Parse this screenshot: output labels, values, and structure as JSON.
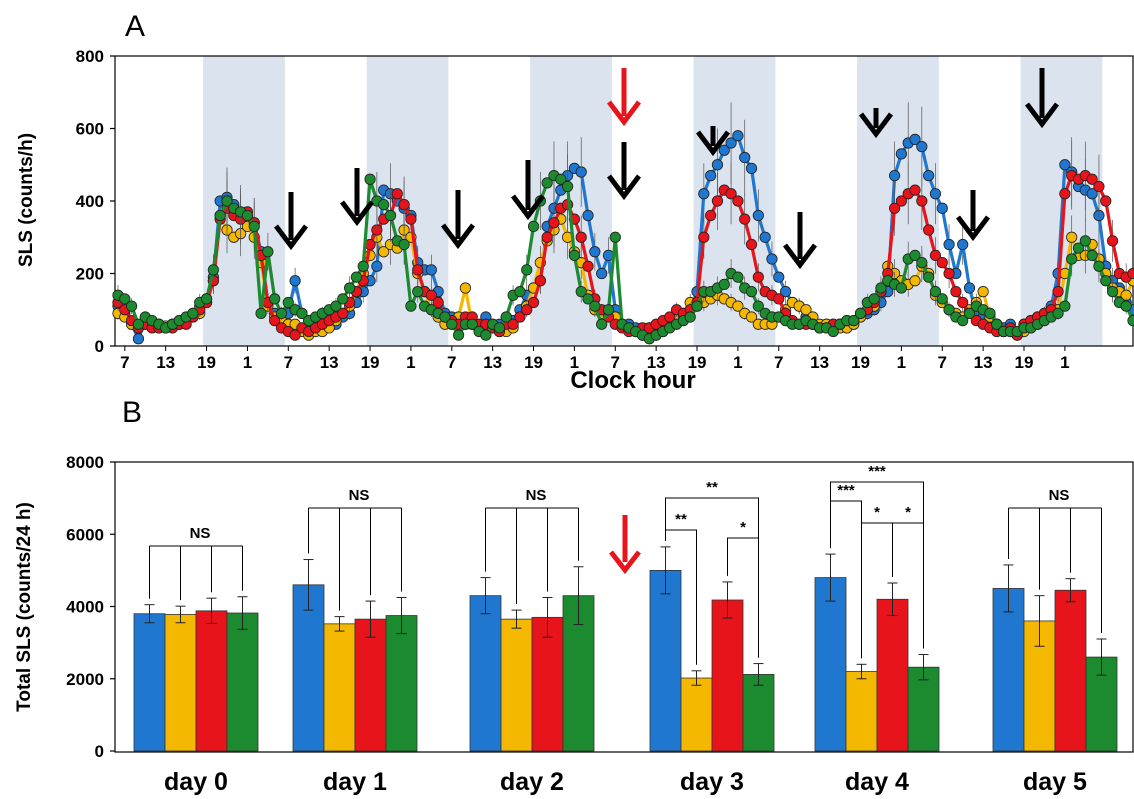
{
  "chart_data": [
    {
      "panel": "A",
      "type": "line",
      "xlabel": "Clock hour",
      "ylabel": "SLS (counts/h)",
      "ylim": [
        0,
        800
      ],
      "y_ticks": [
        "0",
        "200",
        "400",
        "600",
        "800"
      ],
      "x_tick_labels": [
        "7",
        "13",
        "19",
        "1",
        "7",
        "13",
        "19",
        "1",
        "7",
        "13",
        "19",
        "1",
        "7",
        "13",
        "19",
        "1",
        "7",
        "13",
        "19",
        "1",
        "7",
        "13",
        "19",
        "1"
      ],
      "dark_phase_shading": true,
      "colors": [
        "#1f77d0",
        "#f5b800",
        "#e8141b",
        "#1c8a2e"
      ],
      "series": [
        {
          "color": "#1f77d0",
          "values": [
            110,
            90,
            60,
            20,
            70,
            60,
            60,
            55,
            60,
            70,
            70,
            90,
            110,
            130,
            190,
            400,
            410,
            390,
            360,
            350,
            340,
            260,
            120,
            90,
            80,
            90,
            180,
            90,
            70,
            60,
            50,
            60,
            60,
            80,
            90,
            120,
            150,
            180,
            220,
            430,
            420,
            400,
            380,
            360,
            230,
            210,
            210,
            150,
            90,
            80,
            60,
            60,
            60,
            50,
            80,
            60,
            60,
            80,
            70,
            100,
            140,
            160,
            180,
            330,
            380,
            430,
            470,
            490,
            480,
            360,
            260,
            200,
            250,
            100,
            60,
            60,
            50,
            40,
            50,
            40,
            60,
            60,
            80,
            90,
            100,
            150,
            420,
            470,
            500,
            540,
            560,
            580,
            520,
            490,
            360,
            300,
            240,
            190,
            150,
            120,
            110,
            80,
            60,
            50,
            60,
            60,
            60,
            50,
            60,
            80,
            90,
            100,
            120,
            150,
            470,
            530,
            560,
            570,
            550,
            470,
            420,
            380,
            280,
            200,
            280,
            160,
            90,
            80,
            60,
            60,
            50,
            60,
            40,
            60,
            70,
            80,
            90,
            110,
            200,
            500,
            480,
            440,
            430,
            420,
            360,
            220,
            180,
            160,
            120,
            100
          ]
        },
        {
          "color": "#f5b800",
          "values": [
            90,
            80,
            60,
            50,
            60,
            55,
            50,
            55,
            60,
            60,
            70,
            80,
            90,
            120,
            180,
            360,
            320,
            300,
            310,
            330,
            300,
            230,
            110,
            80,
            70,
            60,
            60,
            40,
            30,
            40,
            40,
            50,
            70,
            90,
            110,
            150,
            200,
            250,
            300,
            260,
            280,
            270,
            320,
            300,
            200,
            150,
            100,
            80,
            60,
            60,
            80,
            160,
            60,
            50,
            50,
            50,
            40,
            40,
            50,
            80,
            110,
            160,
            230,
            290,
            320,
            350,
            300,
            260,
            230,
            140,
            100,
            90,
            90,
            80,
            60,
            50,
            40,
            30,
            40,
            30,
            40,
            60,
            80,
            80,
            120,
            110,
            120,
            130,
            140,
            130,
            120,
            110,
            90,
            80,
            60,
            60,
            60,
            80,
            100,
            120,
            110,
            100,
            80,
            60,
            60,
            50,
            50,
            50,
            60,
            80,
            100,
            110,
            150,
            220,
            200,
            180,
            170,
            180,
            220,
            200,
            140,
            120,
            100,
            90,
            80,
            100,
            120,
            150,
            80,
            60,
            40,
            40,
            30,
            40,
            50,
            60,
            80,
            90,
            100,
            200,
            300,
            250,
            250,
            280,
            240,
            200,
            160,
            150,
            140,
            180
          ]
        },
        {
          "color": "#e8141b",
          "values": [
            120,
            100,
            70,
            50,
            60,
            50,
            50,
            50,
            50,
            60,
            60,
            80,
            100,
            120,
            180,
            350,
            380,
            360,
            350,
            370,
            340,
            250,
            120,
            70,
            50,
            40,
            30,
            50,
            40,
            50,
            60,
            70,
            80,
            90,
            120,
            150,
            180,
            280,
            320,
            350,
            360,
            420,
            390,
            350,
            210,
            150,
            140,
            120,
            80,
            70,
            60,
            80,
            80,
            60,
            60,
            50,
            40,
            60,
            60,
            80,
            100,
            120,
            180,
            300,
            340,
            380,
            390,
            350,
            300,
            220,
            130,
            100,
            80,
            60,
            50,
            40,
            40,
            50,
            50,
            60,
            70,
            80,
            100,
            90,
            100,
            120,
            300,
            360,
            400,
            430,
            420,
            400,
            350,
            280,
            190,
            150,
            140,
            130,
            90,
            70,
            60,
            60,
            60,
            50,
            50,
            60,
            60,
            70,
            70,
            90,
            100,
            120,
            150,
            200,
            380,
            400,
            420,
            430,
            400,
            320,
            250,
            230,
            200,
            150,
            120,
            90,
            70,
            60,
            50,
            40,
            40,
            50,
            30,
            60,
            70,
            80,
            90,
            100,
            150,
            420,
            470,
            460,
            470,
            460,
            440,
            400,
            290,
            200,
            190,
            200
          ]
        },
        {
          "color": "#1c8a2e",
          "values": [
            140,
            130,
            110,
            60,
            80,
            70,
            60,
            50,
            60,
            70,
            80,
            90,
            120,
            130,
            210,
            360,
            400,
            380,
            370,
            360,
            330,
            90,
            260,
            130,
            90,
            120,
            100,
            90,
            70,
            80,
            90,
            100,
            110,
            130,
            160,
            190,
            220,
            460,
            400,
            390,
            360,
            290,
            280,
            110,
            150,
            110,
            100,
            90,
            80,
            60,
            30,
            60,
            60,
            40,
            30,
            60,
            50,
            80,
            140,
            150,
            210,
            330,
            400,
            450,
            470,
            460,
            440,
            250,
            150,
            130,
            110,
            60,
            100,
            300,
            60,
            50,
            40,
            30,
            20,
            30,
            40,
            50,
            60,
            70,
            80,
            110,
            150,
            150,
            160,
            170,
            200,
            190,
            160,
            150,
            110,
            90,
            80,
            80,
            70,
            60,
            60,
            70,
            60,
            50,
            50,
            40,
            60,
            70,
            70,
            90,
            120,
            130,
            160,
            180,
            170,
            160,
            240,
            250,
            230,
            190,
            150,
            130,
            100,
            80,
            70,
            90,
            110,
            100,
            90,
            60,
            40,
            40,
            40,
            50,
            50,
            60,
            70,
            80,
            90,
            110,
            240,
            270,
            290,
            250,
            220,
            180,
            150,
            120,
            110,
            70
          ]
        }
      ],
      "annotations": [
        "red-arrow",
        "black-arrows"
      ]
    },
    {
      "panel": "B",
      "type": "bar",
      "ylabel": "Total SLS (counts/24 h)",
      "ylim": [
        0,
        8000
      ],
      "y_ticks": [
        "0",
        "2000",
        "4000",
        "6000",
        "8000"
      ],
      "categories": [
        "day 0",
        "day 1",
        "day 2",
        "day 3",
        "day 4",
        "day 5"
      ],
      "series": [
        {
          "color": "#1f77d0",
          "values": [
            3800,
            4600,
            4300,
            5000,
            4800,
            4500
          ],
          "errors": [
            250,
            700,
            500,
            650,
            650,
            650
          ]
        },
        {
          "color": "#f5b800",
          "values": [
            3780,
            3520,
            3650,
            2020,
            2200,
            3600
          ],
          "errors": [
            230,
            200,
            250,
            200,
            200,
            700
          ]
        },
        {
          "color": "#e8141b",
          "values": [
            3880,
            3650,
            3700,
            4180,
            4200,
            4450
          ],
          "errors": [
            350,
            500,
            550,
            500,
            450,
            320
          ]
        },
        {
          "color": "#1c8a2e",
          "values": [
            3820,
            3750,
            4300,
            2120,
            2320,
            2600
          ],
          "errors": [
            450,
            500,
            800,
            300,
            350,
            500
          ]
        }
      ],
      "significance": [
        "NS",
        "NS",
        "NS",
        "**",
        "**",
        "*",
        "***",
        "***",
        "*",
        "*",
        "NS"
      ]
    }
  ],
  "labels": {
    "panelA": "A",
    "panelB": "B"
  }
}
